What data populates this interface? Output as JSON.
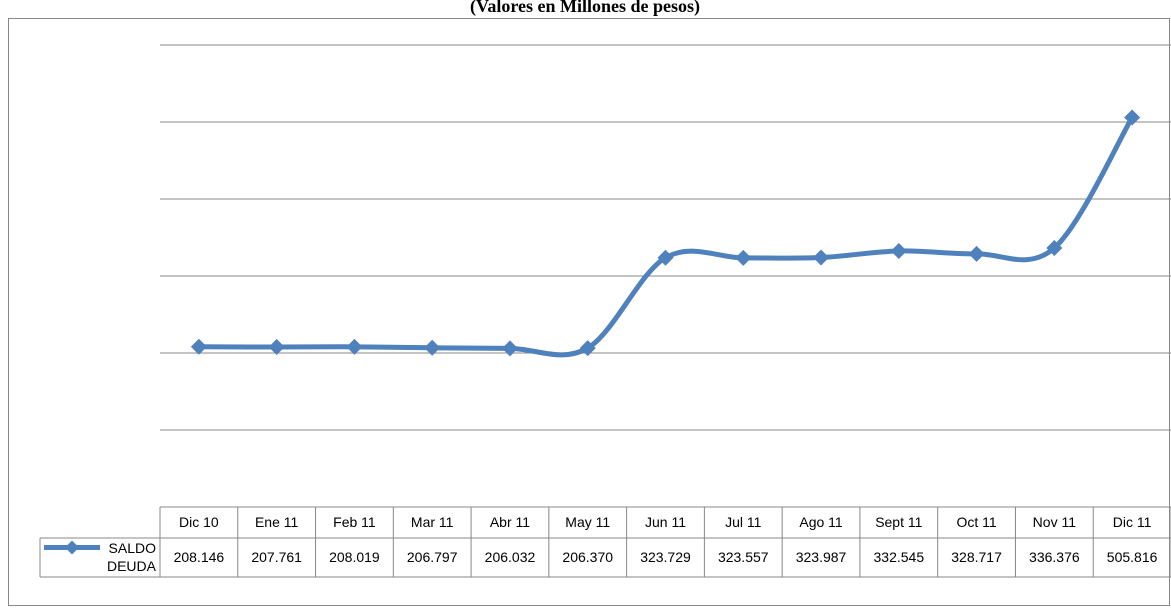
{
  "chart_data": {
    "type": "line",
    "title": "(Valores en Millones de pesos)",
    "categories": [
      "Dic 10",
      "Ene 11",
      "Feb 11",
      "Mar 11",
      "Abr 11",
      "May 11",
      "Jun 11",
      "Jul 11",
      "Ago 11",
      "Sept 11",
      "Oct 11",
      "Nov 11",
      "Dic 11"
    ],
    "series": [
      {
        "name": "SALDO DEUDA",
        "color": "#4f81bd",
        "values": [
          208.146,
          207.761,
          208.019,
          206.797,
          206.032,
          206.37,
          323.729,
          323.557,
          323.987,
          332.545,
          328.717,
          336.376,
          505.816
        ],
        "value_labels": [
          "208.146",
          "207.761",
          "208.019",
          "206.797",
          "206.032",
          "206.370",
          "323.729",
          "323.557",
          "323.987",
          "332.545",
          "328.717",
          "336.376",
          "505.816"
        ]
      }
    ],
    "ylim": [
      0,
      600
    ],
    "yticks": [
      100,
      200,
      300,
      400,
      500,
      600
    ],
    "grid": true
  }
}
